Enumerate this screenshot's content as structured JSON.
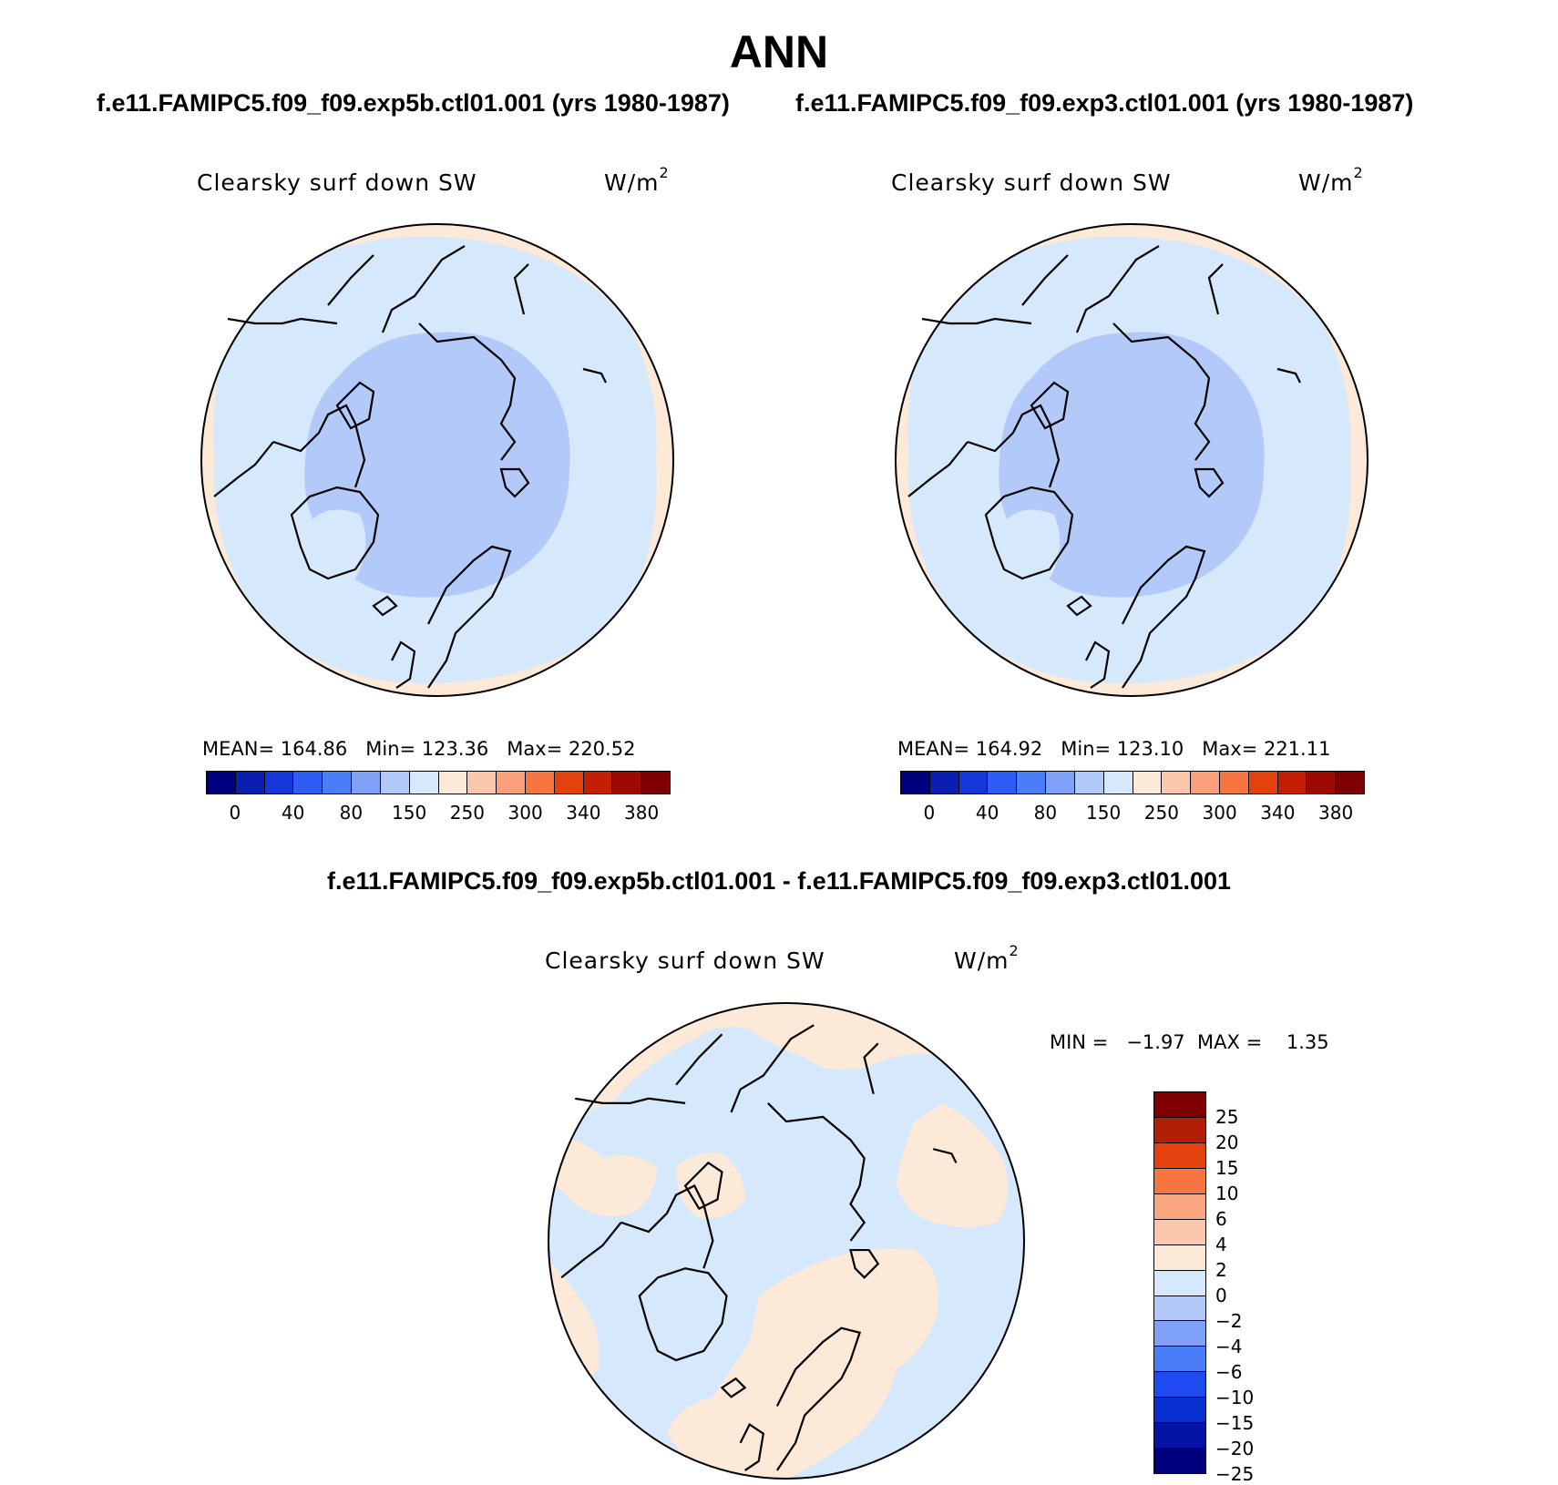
{
  "header": {
    "title": "ANN",
    "left_case": "f.e11.FAMIPC5.f09_f09.exp5b.ctl01.001 (yrs 1980-1987)",
    "right_case": "f.e11.FAMIPC5.f09_f09.exp3.ctl01.001 (yrs 1980-1987)"
  },
  "panels": {
    "left": {
      "variable": "Clearsky surf down SW",
      "units": "W/m",
      "units_sup": "2",
      "stats": "MEAN= 164.86   Min= 123.36   Max= 220.52"
    },
    "right": {
      "variable": "Clearsky surf down SW",
      "units": "W/m",
      "units_sup": "2",
      "stats": "MEAN= 164.92   Min= 123.10   Max= 221.11"
    },
    "diff": {
      "title": "f.e11.FAMIPC5.f09_f09.exp5b.ctl01.001 - f.e11.FAMIPC5.f09_f09.exp3.ctl01.001",
      "variable": "Clearsky surf down SW",
      "units": "W/m",
      "units_sup": "2",
      "stats": "MIN =   −1.97  MAX =    1.35"
    }
  },
  "colorbars": {
    "abs": {
      "colors": [
        "#00007f",
        "#0a1fb0",
        "#1536d8",
        "#2e5cf5",
        "#4a7df7",
        "#7fa2f8",
        "#b3c9f9",
        "#d6e8fb",
        "#fde9d7",
        "#fbc8ad",
        "#f9a07b",
        "#f77540",
        "#e3420f",
        "#c21f04",
        "#9b0b02",
        "#7f0000"
      ],
      "labels": [
        "0",
        "40",
        "80",
        "150",
        "250",
        "300",
        "340",
        "380"
      ]
    },
    "diff": {
      "colors_top_to_bottom": [
        "#7f0000",
        "#b31f06",
        "#e3420f",
        "#f77540",
        "#fba882",
        "#fbc8ad",
        "#fde9d7",
        "#d6e8fb",
        "#b3c9f9",
        "#7fa2f8",
        "#4a7df7",
        "#1f4cf0",
        "#0a2fd0",
        "#0614a6",
        "#00007f"
      ],
      "labels": [
        "25",
        "20",
        "15",
        "10",
        "6",
        "4",
        "2",
        "0",
        "−2",
        "−4",
        "−6",
        "−10",
        "−15",
        "−20",
        "−25"
      ]
    }
  },
  "map_colors": {
    "outer": "#fde9d7",
    "mid": "#d6e8fb",
    "inner": "#b3c9f9",
    "diff_pos": "#fde9d7",
    "diff_neg": "#d6e8fb"
  }
}
